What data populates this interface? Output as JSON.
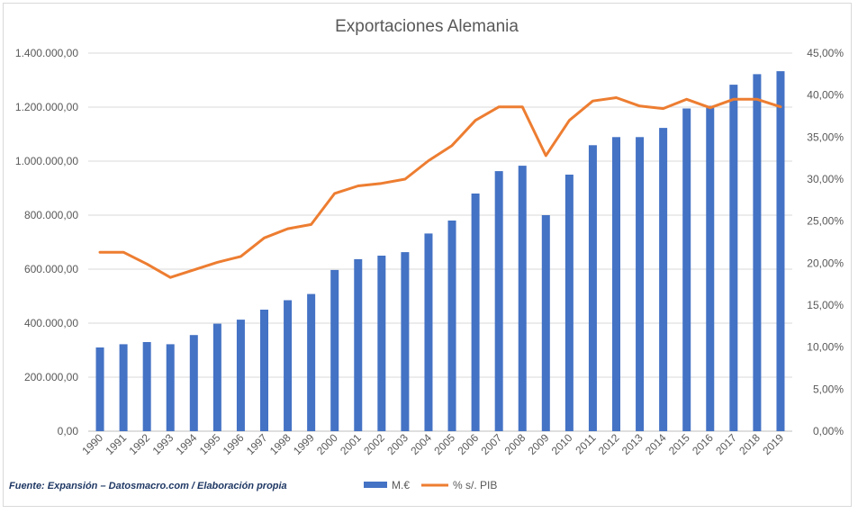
{
  "chart_data": {
    "type": "bar",
    "title": "Exportaciones Alemania",
    "source_note": "Fuente: Expansión – Datosmacro.com / Elaboración propia",
    "categories": [
      "1990",
      "1991",
      "1992",
      "1993",
      "1994",
      "1995",
      "1996",
      "1997",
      "1998",
      "1999",
      "2000",
      "2001",
      "2002",
      "2003",
      "2004",
      "2005",
      "2006",
      "2007",
      "2008",
      "2009",
      "2010",
      "2011",
      "2012",
      "2013",
      "2014",
      "2015",
      "2016",
      "2017",
      "2018",
      "2019"
    ],
    "series": [
      {
        "name": "M.€",
        "type": "bar",
        "axis": "left",
        "color": "#4472c4",
        "values": [
          310000,
          322000,
          330000,
          322000,
          356000,
          398000,
          413000,
          450000,
          485000,
          508000,
          597000,
          637000,
          650000,
          663000,
          732000,
          780000,
          880000,
          963000,
          983000,
          800000,
          950000,
          1059000,
          1089000,
          1089000,
          1123000,
          1195000,
          1205000,
          1283000,
          1322000,
          1333000
        ]
      },
      {
        "name": "% s/. PIB",
        "type": "line",
        "axis": "right",
        "color": "#ed7d31",
        "values": [
          21.3,
          21.3,
          19.9,
          18.3,
          19.2,
          20.1,
          20.8,
          23.0,
          24.1,
          24.6,
          28.3,
          29.2,
          29.5,
          30.0,
          32.2,
          34.0,
          37.0,
          38.6,
          38.6,
          32.8,
          37.0,
          39.3,
          39.7,
          38.7,
          38.4,
          39.5,
          38.5,
          39.5,
          39.5,
          38.6
        ]
      }
    ],
    "y_left": {
      "min": 0,
      "max": 1400000,
      "step": 200000,
      "tick_labels": [
        "0,00",
        "200.000,00",
        "400.000,00",
        "600.000,00",
        "800.000,00",
        "1.000.000,00",
        "1.200.000,00",
        "1.400.000,00"
      ]
    },
    "y_right": {
      "min": 0,
      "max": 45,
      "step": 5,
      "tick_labels": [
        "0,00%",
        "5,00%",
        "10,00%",
        "15,00%",
        "20,00%",
        "25,00%",
        "30,00%",
        "35,00%",
        "40,00%",
        "45,00%"
      ]
    },
    "grid": true,
    "legend_position": "bottom"
  }
}
